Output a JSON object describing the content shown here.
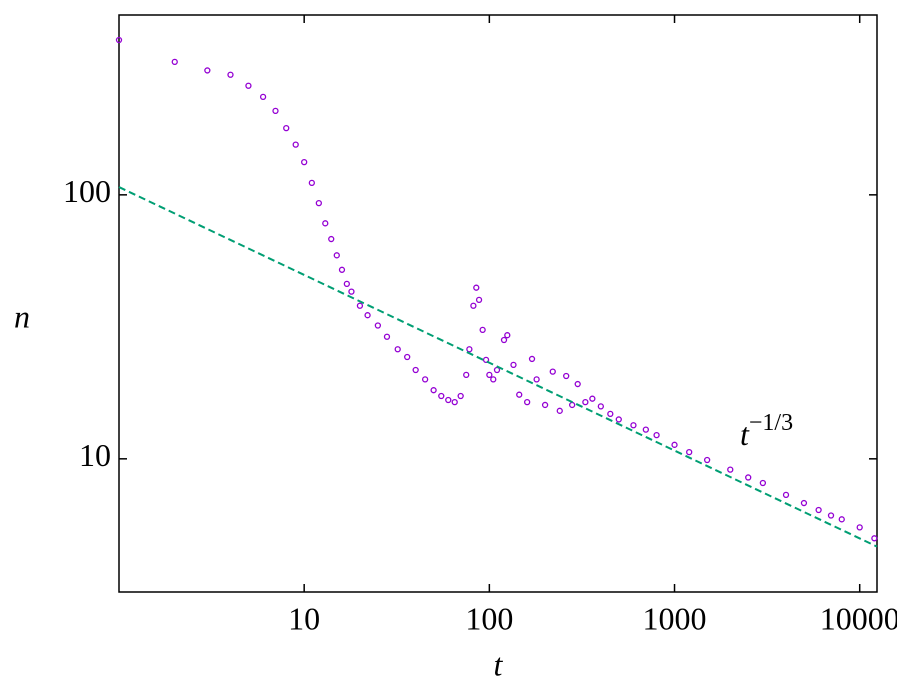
{
  "chart_data": {
    "type": "scatter",
    "x_label": "t",
    "y_label": "n",
    "annotation": {
      "base": "t",
      "exponent": "−1/3"
    },
    "log_x": true,
    "log_y": true,
    "xlim": [
      1,
      12400
    ],
    "ylim": [
      3.13,
      480
    ],
    "xticks": [
      10,
      100,
      1000,
      10000
    ],
    "yticks": [
      10,
      100
    ],
    "series": [
      {
        "name": "n",
        "kind": "scatter",
        "color": "#9400d3",
        "x": [
          1,
          2,
          3,
          4,
          5,
          6,
          7,
          8,
          9,
          10,
          11,
          12,
          13,
          14,
          15,
          16,
          17,
          18,
          20,
          22,
          25,
          28,
          32,
          36,
          40,
          45,
          50,
          55,
          60,
          65,
          70,
          75,
          78,
          82,
          85,
          88,
          92,
          96,
          100,
          105,
          110,
          120,
          125,
          135,
          145,
          160,
          170,
          180,
          200,
          220,
          240,
          260,
          280,
          300,
          330,
          360,
          400,
          450,
          500,
          600,
          700,
          800,
          1000,
          1200,
          1500,
          2000,
          2500,
          3000,
          4000,
          5000,
          6000,
          7000,
          8000,
          10000,
          12000
        ],
        "values": [
          386,
          319,
          296,
          285,
          259,
          235,
          208,
          179,
          155,
          133,
          111,
          93,
          78,
          68,
          59,
          52,
          46,
          43,
          38,
          35,
          32,
          29,
          26,
          24.3,
          21.7,
          20,
          18.2,
          17.3,
          16.7,
          16.4,
          17.3,
          20.8,
          26,
          38,
          44.5,
          40,
          30.8,
          23.7,
          20.8,
          20,
          21.7,
          28.2,
          29.4,
          22.7,
          17.5,
          16.4,
          23.9,
          20,
          16,
          21.4,
          15.2,
          20.6,
          16,
          19.2,
          16.4,
          16.9,
          15.8,
          14.8,
          14.1,
          13.4,
          12.9,
          12.3,
          11.3,
          10.6,
          9.9,
          9.1,
          8.5,
          8.1,
          7.3,
          6.8,
          6.4,
          6.1,
          5.9,
          5.5,
          5.0
        ]
      },
      {
        "name": "fit",
        "kind": "line",
        "color": "#009e73",
        "dashed": true,
        "x": [
          1,
          12400
        ],
        "values": [
          107,
          4.65
        ]
      }
    ]
  }
}
